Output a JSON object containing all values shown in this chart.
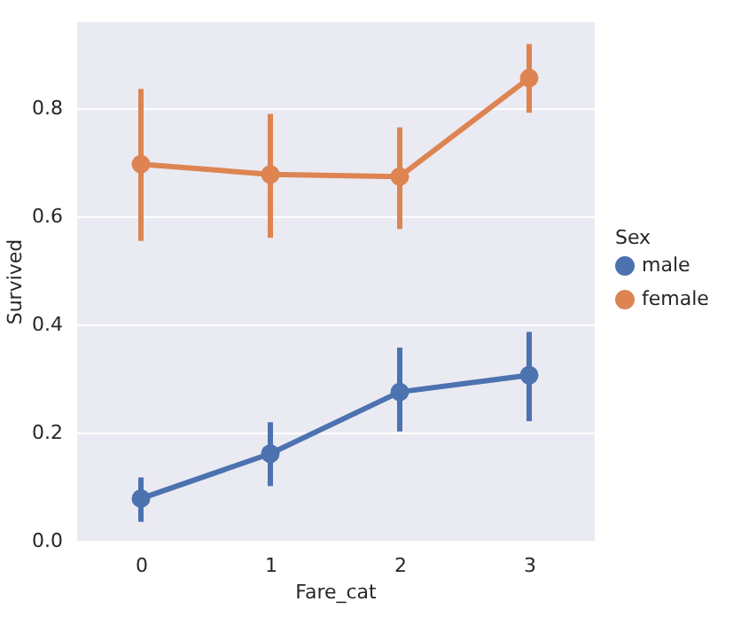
{
  "chart_data": {
    "type": "line",
    "xlabel": "Fare_cat",
    "ylabel": "Survived",
    "legend_title": "Sex",
    "categories": [
      "0",
      "1",
      "2",
      "3"
    ],
    "series": [
      {
        "name": "male",
        "color": "#4c72b0",
        "values": [
          0.078,
          0.161,
          0.275,
          0.306
        ],
        "errors": [
          [
            0.035,
            0.117
          ],
          [
            0.101,
            0.219
          ],
          [
            0.202,
            0.357
          ],
          [
            0.221,
            0.386
          ]
        ]
      },
      {
        "name": "female",
        "color": "#dd8452",
        "values": [
          0.696,
          0.677,
          0.673,
          0.855
        ],
        "errors": [
          [
            0.554,
            0.835
          ],
          [
            0.56,
            0.789
          ],
          [
            0.576,
            0.764
          ],
          [
            0.791,
            0.918
          ]
        ]
      }
    ],
    "ylim": [
      0,
      0.96
    ],
    "yticks": [
      {
        "value": 0,
        "label": "0.0"
      },
      0.2,
      0.4,
      0.6,
      0.8
    ],
    "grid": "y",
    "legend": "right",
    "marker": "circle",
    "line_style": "solid"
  }
}
